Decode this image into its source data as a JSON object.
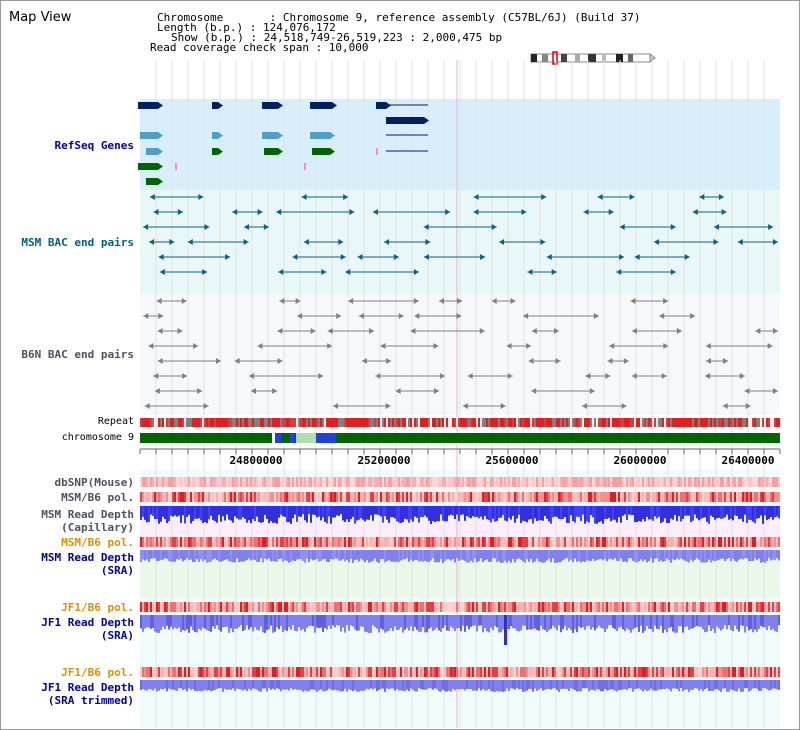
{
  "title": "Map View",
  "info": {
    "chromosome_line": "Chromosome       : Chromosome 9, reference assembly (C57BL/6J) (Build 37)",
    "length_line": "Length (b.p.) : 124,076,172",
    "show_line": "Show (b.p.) : 24,518,749-26,519,223 : 2,000,475 bp",
    "coverage_line": "Read coverage check span : 10,000"
  },
  "tracks": {
    "refseq": "RefSeq Genes",
    "msm_bac": "MSM BAC end pairs",
    "b6n_bac": "B6N BAC end pairs",
    "repeat": "Repeat",
    "chromosome": "chromosome 9",
    "dbsnp": "dbSNP(Mouse)",
    "msm_b6_pol_1": "MSM/B6 pol.",
    "msm_depth_cap_1": "MSM Read Depth",
    "msm_depth_cap_2": "(Capillary)",
    "msm_b6_pol_2": "MSM/B6 pol.",
    "msm_depth_sra_1": "MSM Read Depth",
    "msm_depth_sra_2": "(SRA)",
    "jf1_b6_pol_1": "JF1/B6 pol.",
    "jf1_depth_sra_1": "JF1 Read Depth",
    "jf1_depth_sra_2": "(SRA)",
    "jf1_b6_pol_2": "JF1/B6 pol.",
    "jf1_depth_trim_1": "JF1 Read Depth",
    "jf1_depth_trim_2": "(SRA trimmed)"
  },
  "axis_ticks": [
    "24800000",
    "25200000",
    "25600000",
    "26000000",
    "26400000"
  ],
  "colors": {
    "refseq_bg": "#d8eefa",
    "msm_bac_bg": "#e8f8f8",
    "b6n_bac_bg": "#f6f8fb",
    "label_blue": "#0000a0",
    "label_teal": "#006080",
    "label_gray": "#505060",
    "label_orange": "#e09000",
    "chromosome_green": "#006400",
    "depth_blue": "#3030e0",
    "depth_light_blue": "#8080f0"
  }
}
